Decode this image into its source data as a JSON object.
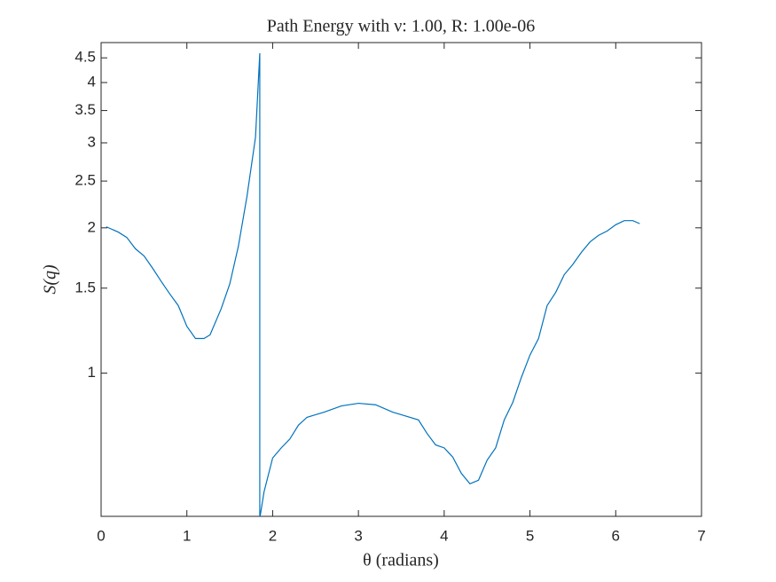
{
  "chart_data": {
    "type": "line",
    "title": "Path Energy with ν: 1.00, R: 1.00e-06",
    "x_label": "θ (radians)",
    "y_label": "S(q)",
    "log_y": true,
    "xlim": [
      0,
      7
    ],
    "xticks": [
      0,
      1,
      2,
      3,
      4,
      5,
      6,
      7
    ],
    "ylim": [
      0.505,
      4.84
    ],
    "yticks": [
      1,
      1.5,
      2,
      2.5,
      3,
      3.5,
      4,
      4.5
    ],
    "series": [
      {
        "color": "#0072bd",
        "x": [
          0.06,
          0.2,
          0.3,
          0.4,
          0.5,
          0.6,
          0.7,
          0.8,
          0.9,
          1.0,
          1.1,
          1.2,
          1.27,
          1.4,
          1.5,
          1.6,
          1.7,
          1.8,
          1.85,
          1.85,
          1.9,
          2.0,
          2.1,
          2.2,
          2.3,
          2.4,
          2.5,
          2.6,
          2.8,
          3.0,
          3.2,
          3.4,
          3.5,
          3.7,
          3.8,
          3.9,
          4.0,
          4.1,
          4.2,
          4.3,
          4.4,
          4.5,
          4.6,
          4.7,
          4.8,
          4.9,
          5.0,
          5.1,
          5.2,
          5.3,
          5.4,
          5.5,
          5.6,
          5.7,
          5.8,
          5.9,
          6.0,
          6.1,
          6.2,
          6.28
        ],
        "values": [
          2.01,
          1.96,
          1.91,
          1.81,
          1.75,
          1.65,
          1.55,
          1.46,
          1.38,
          1.25,
          1.18,
          1.18,
          1.2,
          1.36,
          1.53,
          1.83,
          2.32,
          3.08,
          4.6,
          0.5,
          0.568,
          0.667,
          0.7,
          0.73,
          0.78,
          0.81,
          0.82,
          0.83,
          0.855,
          0.866,
          0.86,
          0.83,
          0.82,
          0.8,
          0.75,
          0.71,
          0.7,
          0.67,
          0.62,
          0.59,
          0.6,
          0.66,
          0.7,
          0.8,
          0.87,
          0.98,
          1.09,
          1.18,
          1.38,
          1.47,
          1.6,
          1.68,
          1.78,
          1.87,
          1.93,
          1.97,
          2.03,
          2.07,
          2.07,
          2.04
        ]
      }
    ]
  }
}
